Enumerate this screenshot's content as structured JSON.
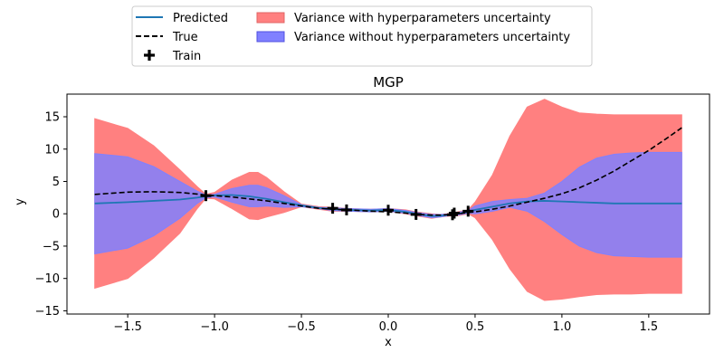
{
  "chart_data": {
    "type": "line",
    "title": "MGP",
    "xlabel": "x",
    "ylabel": "y",
    "xlim": [
      -1.85,
      1.85
    ],
    "ylim": [
      -15.5,
      18.5
    ],
    "xticks": [
      -1.5,
      -1.0,
      -0.5,
      0.0,
      0.5,
      1.0,
      1.5
    ],
    "xtick_labels": [
      "−1.5",
      "−1.0",
      "−0.5",
      "0.0",
      "0.5",
      "1.0",
      "1.5"
    ],
    "yticks": [
      -15,
      -10,
      -5,
      0,
      5,
      10,
      15
    ],
    "ytick_labels": [
      "−15",
      "−10",
      "−5",
      "0",
      "5",
      "10",
      "15"
    ],
    "grid": false,
    "legend_position": "above plot, centered",
    "legend": [
      {
        "label": "Predicted",
        "kind": "line",
        "color": "#1f77b4"
      },
      {
        "label": "Variance with hyperparameters uncertainty",
        "kind": "patch",
        "color": "#ff8080"
      },
      {
        "label": "True",
        "kind": "dashed",
        "color": "#000000"
      },
      {
        "label": "Variance without hyperparameters uncertainty",
        "kind": "patch",
        "color": "#8080ff"
      },
      {
        "label": "Train",
        "kind": "marker",
        "color": "#000000"
      }
    ],
    "x": [
      -1.69,
      -1.5,
      -1.35,
      -1.2,
      -1.1,
      -1.05,
      -1.0,
      -0.9,
      -0.8,
      -0.75,
      -0.7,
      -0.6,
      -0.5,
      -0.4,
      -0.32,
      -0.23,
      -0.1,
      0.0,
      0.1,
      0.16,
      0.25,
      0.3,
      0.37,
      0.4,
      0.46,
      0.5,
      0.6,
      0.7,
      0.8,
      0.9,
      1.0,
      1.1,
      1.2,
      1.3,
      1.4,
      1.5,
      1.6,
      1.69
    ],
    "series": [
      {
        "name": "Predicted",
        "color": "#1f77b4",
        "values": [
          1.6,
          1.8,
          2.0,
          2.2,
          2.5,
          2.7,
          2.85,
          2.9,
          2.7,
          2.5,
          2.3,
          1.8,
          1.3,
          0.9,
          0.7,
          0.6,
          0.5,
          0.6,
          0.3,
          0.0,
          -0.35,
          -0.3,
          -0.1,
          0.0,
          0.3,
          0.6,
          1.1,
          1.6,
          1.9,
          2.0,
          1.9,
          1.8,
          1.7,
          1.6,
          1.6,
          1.6,
          1.6,
          1.6
        ]
      },
      {
        "name": "True",
        "color": "#000000",
        "dashed": true,
        "values": [
          3.0,
          3.35,
          3.4,
          3.3,
          3.05,
          2.9,
          2.8,
          2.6,
          2.3,
          2.15,
          2.0,
          1.6,
          1.2,
          0.85,
          0.7,
          0.6,
          0.4,
          0.3,
          0.1,
          -0.1,
          -0.2,
          -0.2,
          -0.1,
          0.0,
          0.2,
          0.3,
          0.7,
          1.2,
          1.8,
          2.4,
          3.1,
          4.0,
          5.2,
          6.6,
          8.2,
          9.8,
          11.6,
          13.3
        ]
      }
    ],
    "bands": [
      {
        "name": "Variance with hyperparameters uncertainty",
        "color": "#ff8080",
        "upper": [
          14.7,
          13.2,
          10.5,
          6.8,
          4.2,
          3.0,
          3.3,
          5.2,
          6.4,
          6.4,
          5.6,
          3.4,
          1.5,
          1.1,
          1.0,
          0.8,
          0.7,
          0.8,
          0.6,
          0.3,
          0.0,
          -0.1,
          0.1,
          0.3,
          0.6,
          1.8,
          6.0,
          12.0,
          16.5,
          17.7,
          16.5,
          15.6,
          15.4,
          15.3,
          15.3,
          15.3,
          15.3,
          15.3
        ],
        "lower": [
          -11.5,
          -10.0,
          -6.8,
          -3.0,
          0.8,
          2.4,
          2.3,
          0.8,
          -0.8,
          -0.9,
          -0.5,
          0.2,
          1.1,
          0.7,
          0.4,
          0.4,
          0.3,
          0.4,
          0.0,
          -0.3,
          -0.7,
          -0.5,
          -0.3,
          -0.3,
          0.0,
          -0.6,
          -4.0,
          -8.5,
          -12.0,
          -13.4,
          -13.2,
          -12.8,
          -12.5,
          -12.4,
          -12.4,
          -12.3,
          -12.3,
          -12.3
        ]
      },
      {
        "name": "Variance without hyperparameters uncertainty",
        "color": "#8080ff",
        "upper": [
          9.3,
          8.8,
          7.3,
          5.0,
          3.5,
          2.9,
          3.0,
          3.9,
          4.4,
          4.4,
          4.0,
          2.8,
          1.4,
          1.0,
          0.9,
          0.8,
          0.7,
          0.8,
          0.5,
          0.2,
          -0.1,
          -0.1,
          0.0,
          0.2,
          0.5,
          1.2,
          1.9,
          2.2,
          2.4,
          3.2,
          5.0,
          7.2,
          8.6,
          9.2,
          9.4,
          9.5,
          9.5,
          9.5
        ],
        "lower": [
          -6.2,
          -5.3,
          -3.4,
          -0.7,
          1.6,
          2.5,
          2.6,
          1.8,
          1.1,
          1.1,
          1.2,
          1.0,
          1.1,
          0.8,
          0.5,
          0.4,
          0.3,
          0.4,
          0.1,
          -0.2,
          -0.6,
          -0.5,
          -0.2,
          -0.2,
          0.1,
          0.0,
          0.4,
          1.0,
          0.4,
          -1.2,
          -3.2,
          -5.0,
          -6.0,
          -6.5,
          -6.6,
          -6.7,
          -6.7,
          -6.7
        ]
      }
    ],
    "train_points": {
      "name": "Train",
      "x": [
        -1.05,
        -0.32,
        -0.24,
        0.0,
        0.16,
        0.37,
        0.38,
        0.46
      ],
      "y": [
        2.8,
        0.85,
        0.6,
        0.55,
        -0.1,
        -0.15,
        0.1,
        0.4
      ]
    }
  }
}
